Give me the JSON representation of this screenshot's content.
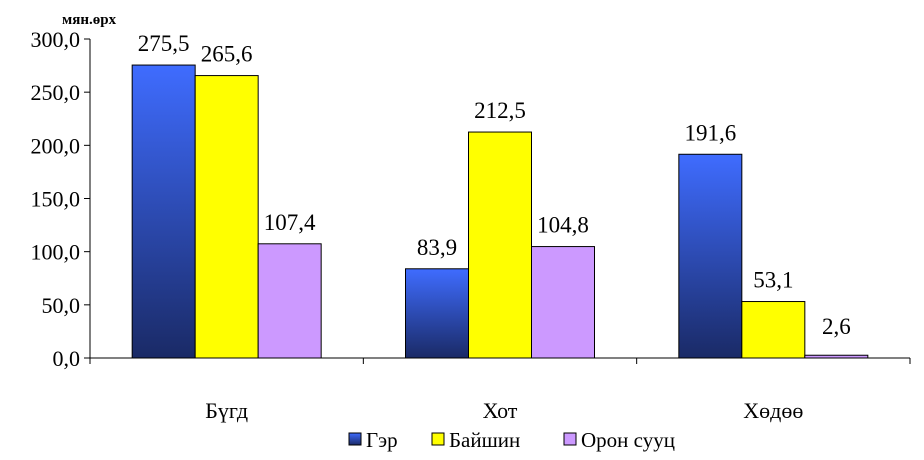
{
  "chart_data": {
    "type": "bar",
    "title": "",
    "unit_label": "мян.өрх",
    "xlabel": "",
    "ylabel": "",
    "categories": [
      "Бүгд",
      "Хот",
      "Хөдөө"
    ],
    "series": [
      {
        "name": "Гэр",
        "values": [
          275.5,
          83.9,
          191.6
        ],
        "color_top": "#3f6cff",
        "color_bottom": "#1a2a66"
      },
      {
        "name": "Байшин",
        "values": [
          265.6,
          212.5,
          53.1
        ],
        "color_top": "#ffff00",
        "color_bottom": "#ffff00"
      },
      {
        "name": "Орон сууц",
        "values": [
          107.4,
          104.8,
          2.6
        ],
        "color_top": "#cc99ff",
        "color_bottom": "#cc99ff"
      }
    ],
    "data_labels": [
      [
        "275,5",
        "83,9",
        "191,6"
      ],
      [
        "265,6",
        "212,5",
        "53,1"
      ],
      [
        "107,4",
        "104,8",
        "2,6"
      ]
    ],
    "ylim": [
      0,
      300
    ],
    "yticks": [
      0,
      50,
      100,
      150,
      200,
      250,
      300
    ],
    "ytick_labels": [
      "0,0",
      "50,0",
      "100,0",
      "150,0",
      "200,0",
      "250,0",
      "300,0"
    ],
    "grid": false,
    "legend_position": "bottom"
  }
}
